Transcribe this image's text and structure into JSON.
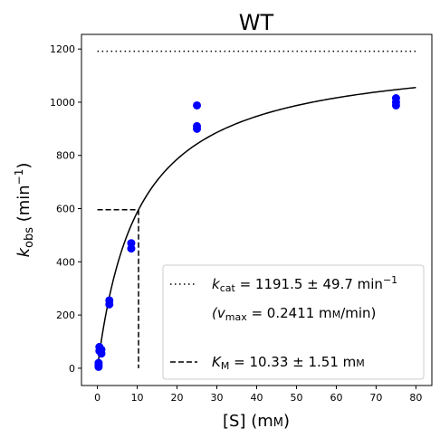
{
  "chart_data": {
    "type": "scatter",
    "title": "WT",
    "xlabel": {
      "main": "[S] (m",
      "small": "M",
      "close": ")"
    },
    "ylabel": {
      "k": "k",
      "sub": "obs",
      "paren": " (min",
      "sup": "−1",
      "close": ")"
    },
    "xlim": [
      -4,
      84
    ],
    "ylim": [
      -65,
      1255
    ],
    "xticks": [
      0,
      10,
      20,
      30,
      40,
      50,
      60,
      70,
      80
    ],
    "yticks": [
      0,
      200,
      400,
      600,
      800,
      1000,
      1200
    ],
    "points": [
      {
        "x": 0.3,
        "y": 5
      },
      {
        "x": 0.3,
        "y": 12
      },
      {
        "x": 0.3,
        "y": 20
      },
      {
        "x": 0.5,
        "y": 65
      },
      {
        "x": 0.5,
        "y": 80
      },
      {
        "x": 1.0,
        "y": 55
      },
      {
        "x": 1.0,
        "y": 70
      },
      {
        "x": 3.0,
        "y": 240
      },
      {
        "x": 3.0,
        "y": 255
      },
      {
        "x": 8.5,
        "y": 450
      },
      {
        "x": 8.5,
        "y": 470
      },
      {
        "x": 25,
        "y": 900
      },
      {
        "x": 25,
        "y": 910
      },
      {
        "x": 25,
        "y": 988
      },
      {
        "x": 75,
        "y": 988
      },
      {
        "x": 75,
        "y": 1000
      },
      {
        "x": 75,
        "y": 1015
      }
    ],
    "fit": {
      "kcat": 1191.5,
      "km": 10.33,
      "x_range": [
        0,
        80
      ]
    },
    "kcat_line": {
      "y": 1191.5,
      "x_range": [
        0,
        80
      ]
    },
    "km_lines": {
      "x": 10.33,
      "y": 595.75
    },
    "colors": {
      "points": "#0000ff",
      "fit": "#000000"
    },
    "legend": {
      "placement": "lower-right",
      "kcat": {
        "k": "k",
        "sub": "cat",
        "text": " = 1191.5 ± 49.7 min",
        "sup": "−1"
      },
      "vmax": {
        "open": "(v",
        "sub": "max",
        "text": " = 0.2411 m",
        "small": "M",
        "close": "/min)"
      },
      "km": {
        "k": "K",
        "sub": "M",
        "text": " = 10.33 ± 1.51 m",
        "small": "M"
      }
    }
  }
}
